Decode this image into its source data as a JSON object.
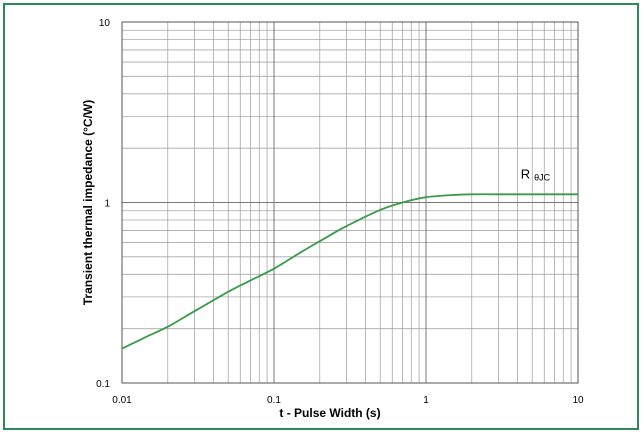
{
  "chart_data": {
    "type": "line",
    "title": "",
    "xlabel": "t - Pulse Width (s)",
    "ylabel": "Transient thermal impedance (°C/W)",
    "x_scale": "log",
    "y_scale": "log",
    "xlim": [
      0.01,
      10
    ],
    "ylim": [
      0.1,
      10
    ],
    "x_ticks": [
      "0.01",
      "0.1",
      "1",
      "10"
    ],
    "y_ticks": [
      "0.1",
      "1",
      "10"
    ],
    "grid": true,
    "line_color": "#3a9a4a",
    "frame_color": "#2e8b57",
    "annotation": {
      "text": "R",
      "subscript": "θJC"
    },
    "series": [
      {
        "x": [
          0.01,
          0.015,
          0.02,
          0.03,
          0.05,
          0.07,
          0.1,
          0.15,
          0.2,
          0.3,
          0.5,
          0.7,
          1,
          1.5,
          2,
          3,
          5,
          7,
          10
        ],
        "y": [
          0.155,
          0.183,
          0.205,
          0.25,
          0.32,
          0.37,
          0.43,
          0.53,
          0.61,
          0.74,
          0.91,
          1.0,
          1.07,
          1.1,
          1.11,
          1.11,
          1.11,
          1.11,
          1.11
        ]
      }
    ]
  }
}
